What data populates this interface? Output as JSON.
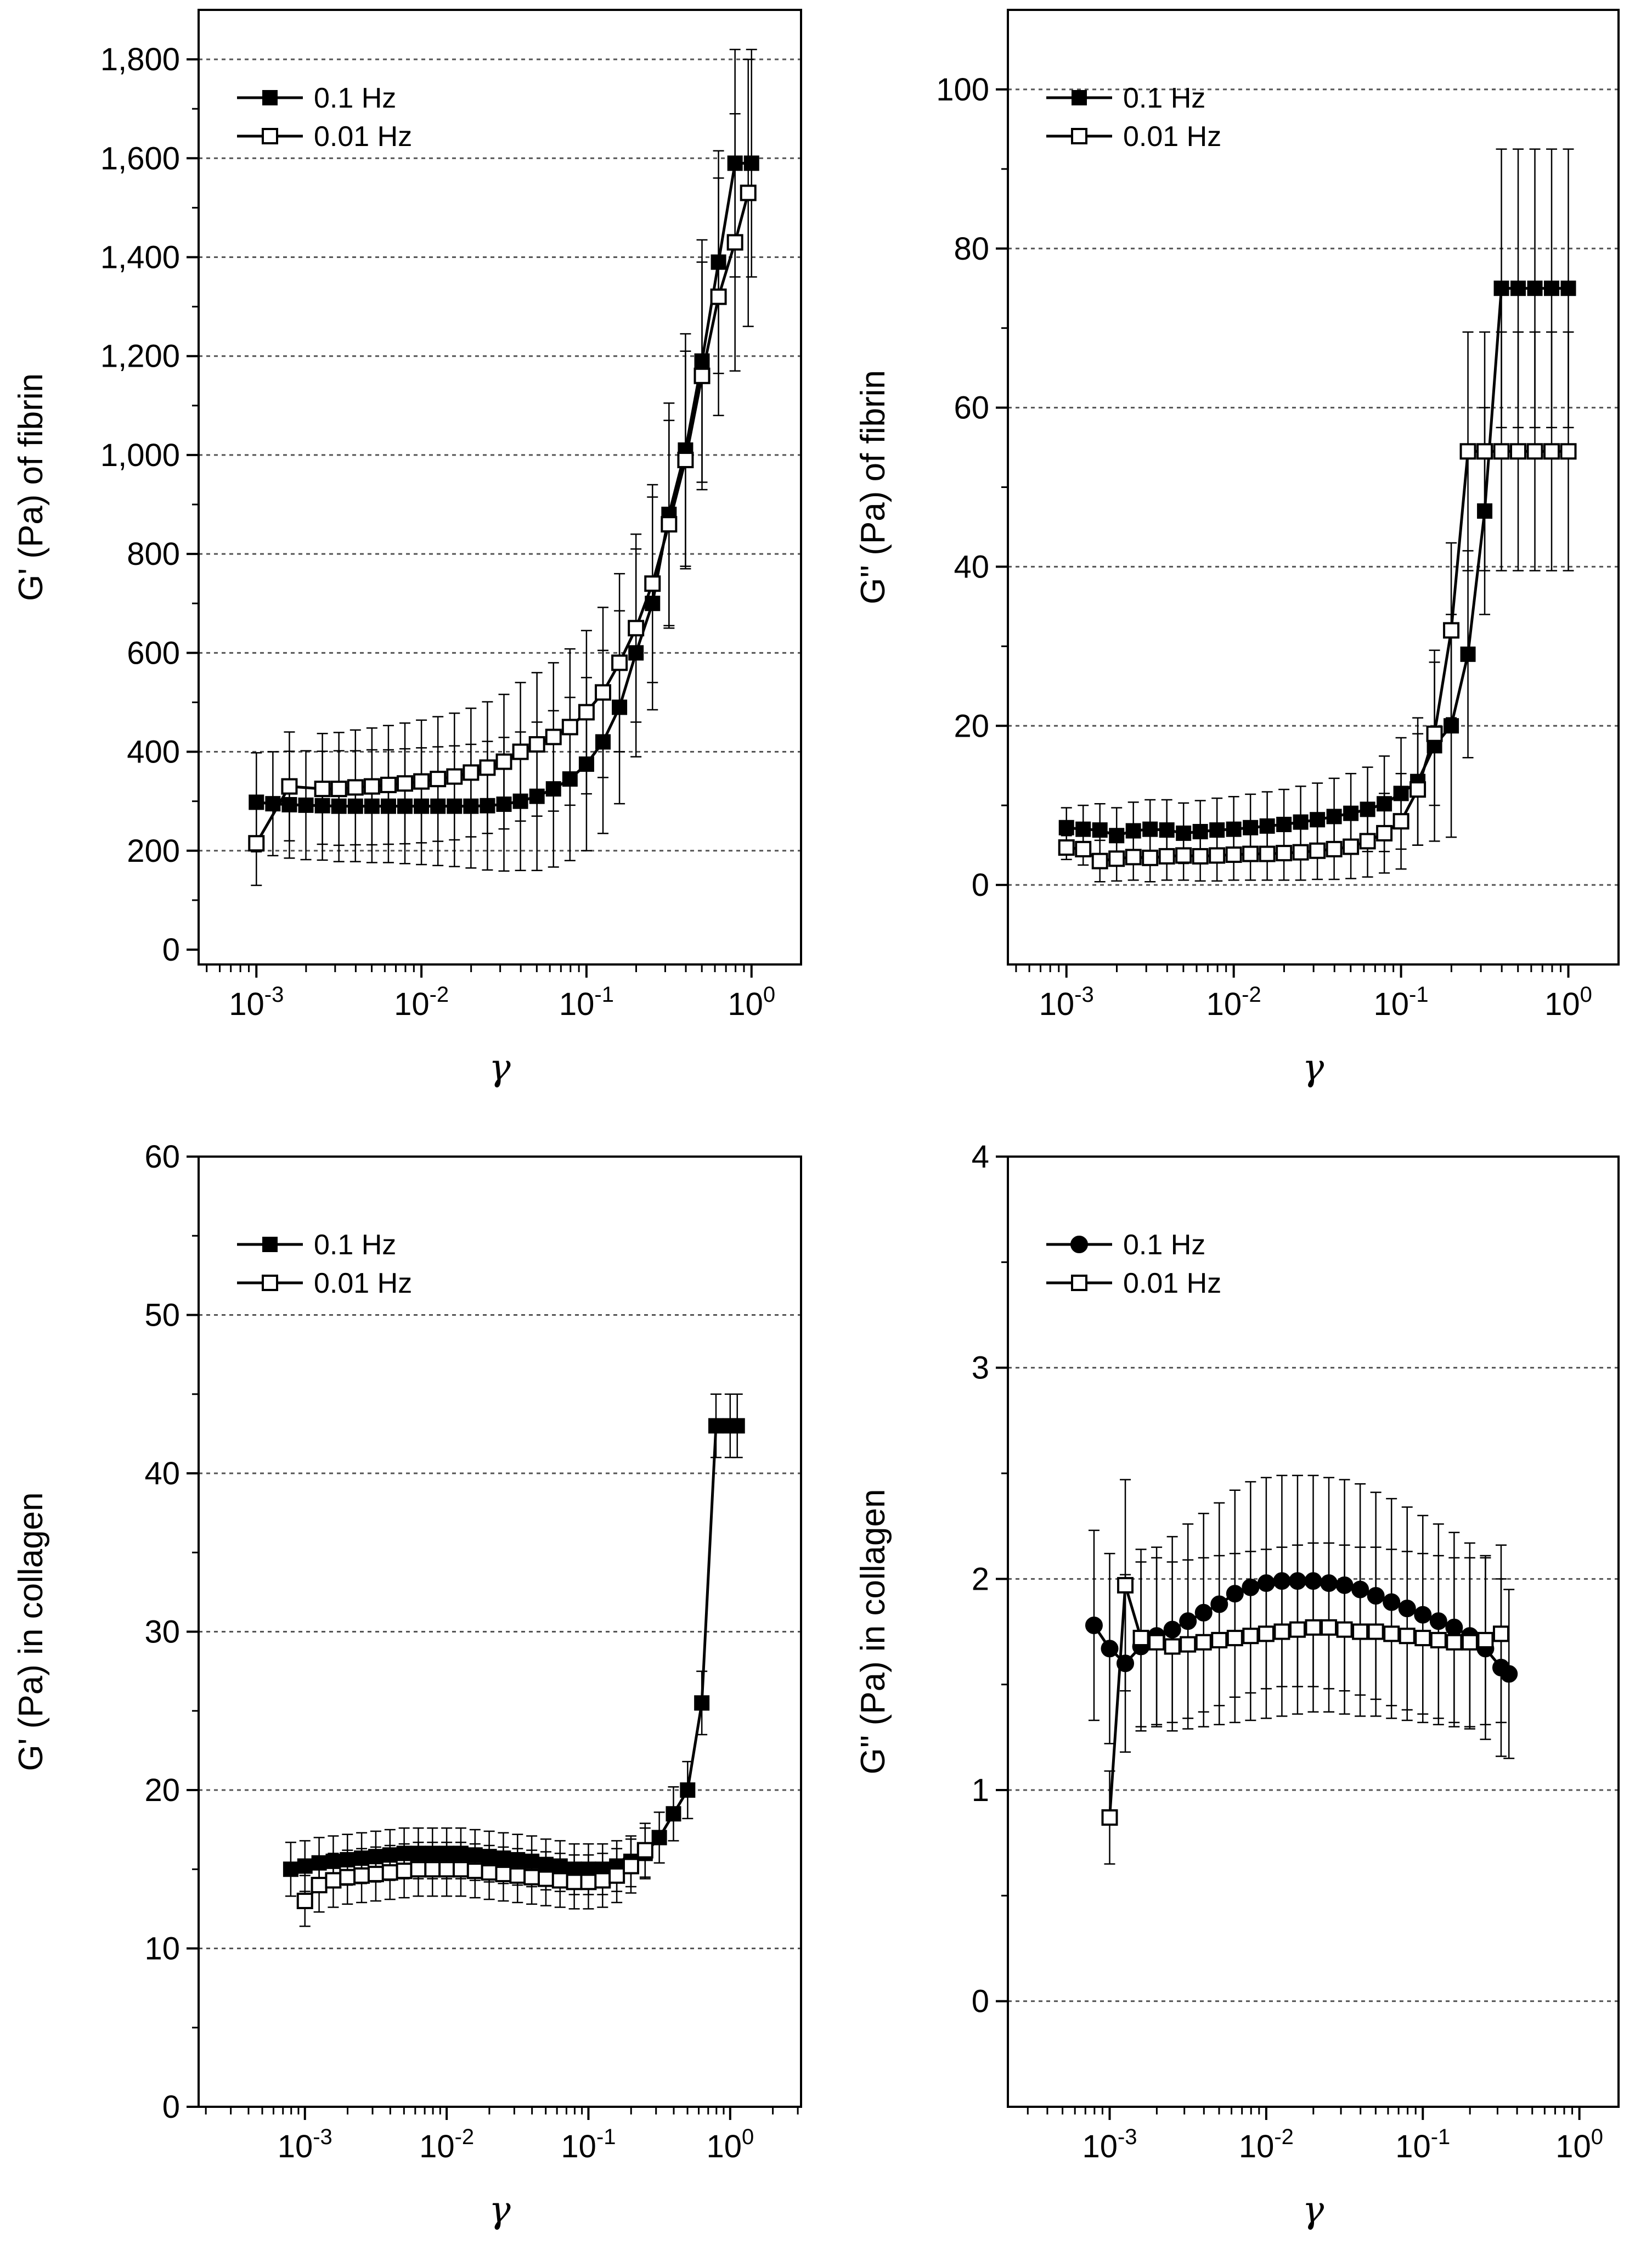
{
  "figure": {
    "panels": 4,
    "layout": "2x2 grid",
    "colors": {
      "line": "#000000",
      "background": "#ffffff",
      "grid": "#555555"
    }
  },
  "chart_data": [
    {
      "id": "fibrin-storage",
      "type": "line",
      "title": "",
      "xlabel": "γ",
      "ylabel": "G' (Pa) of fibrin",
      "xscale": "log",
      "xlim_exp": [
        -3.35,
        0.3
      ],
      "xticks": [
        {
          "exp": -3,
          "base": "10",
          "sup": "-3"
        },
        {
          "exp": -2,
          "base": "10",
          "sup": "-2"
        },
        {
          "exp": -1,
          "base": "10",
          "sup": "-1"
        },
        {
          "exp": 0,
          "base": "10",
          "sup": "0"
        }
      ],
      "ylim": [
        -30,
        1900
      ],
      "yticks": [
        {
          "v": 0,
          "label": "0"
        },
        {
          "v": 200,
          "label": "200"
        },
        {
          "v": 400,
          "label": "400"
        },
        {
          "v": 600,
          "label": "600"
        },
        {
          "v": 800,
          "label": "800"
        },
        {
          "v": 1000,
          "label": "1,000"
        },
        {
          "v": 1200,
          "label": "1,200"
        },
        {
          "v": 1400,
          "label": "1,400"
        },
        {
          "v": 1600,
          "label": "1,600"
        },
        {
          "v": 1800,
          "label": "1,800"
        }
      ],
      "gridlines": [
        200,
        400,
        600,
        800,
        1000,
        1200,
        1400,
        1600,
        1800
      ],
      "legend_position": "top-left",
      "series": [
        {
          "name": "0.1 Hz",
          "marker": "filled-square",
          "x_exp": [
            -3.0,
            -2.9,
            -2.8,
            -2.7,
            -2.6,
            -2.5,
            -2.4,
            -2.3,
            -2.2,
            -2.1,
            -2.0,
            -1.9,
            -1.8,
            -1.7,
            -1.6,
            -1.5,
            -1.4,
            -1.3,
            -1.2,
            -1.1,
            -1.0,
            -0.9,
            -0.8,
            -0.7,
            -0.6,
            -0.5,
            -0.4,
            -0.3,
            -0.2,
            -0.1,
            0.0
          ],
          "values": [
            298,
            295,
            293,
            292,
            291,
            290,
            290,
            290,
            290,
            290,
            290,
            290,
            290,
            290,
            291,
            294,
            300,
            310,
            325,
            345,
            375,
            420,
            490,
            600,
            700,
            880,
            1010,
            1190,
            1390,
            1590,
            1590
          ],
          "errors": [
            100,
            105,
            108,
            110,
            110,
            112,
            112,
            114,
            114,
            116,
            118,
            120,
            122,
            125,
            130,
            135,
            140,
            150,
            158,
            165,
            175,
            185,
            195,
            210,
            215,
            225,
            235,
            245,
            225,
            230,
            230
          ]
        },
        {
          "name": "0.01 Hz",
          "marker": "open-square",
          "x_exp": [
            -3.0,
            -2.8,
            -2.6,
            -2.5,
            -2.4,
            -2.3,
            -2.2,
            -2.1,
            -2.0,
            -1.9,
            -1.8,
            -1.7,
            -1.6,
            -1.5,
            -1.4,
            -1.3,
            -1.2,
            -1.1,
            -1.0,
            -0.9,
            -0.8,
            -0.7,
            -0.6,
            -0.5,
            -0.4,
            -0.3,
            -0.2,
            -0.1,
            -0.02
          ],
          "values": [
            215,
            330,
            325,
            325,
            328,
            330,
            333,
            336,
            340,
            345,
            350,
            358,
            368,
            380,
            400,
            415,
            430,
            450,
            480,
            520,
            580,
            650,
            740,
            860,
            990,
            1160,
            1320,
            1430,
            1530
          ],
          "errors": [
            85,
            110,
            112,
            114,
            116,
            118,
            120,
            122,
            124,
            126,
            128,
            130,
            133,
            136,
            140,
            145,
            150,
            158,
            165,
            172,
            180,
            190,
            200,
            210,
            220,
            230,
            240,
            260,
            270
          ]
        }
      ]
    },
    {
      "id": "fibrin-loss",
      "type": "line",
      "title": "",
      "xlabel": "γ",
      "ylabel": "G'' (Pa) of fibrin",
      "xscale": "log",
      "xlim_exp": [
        -3.35,
        0.3
      ],
      "xticks": [
        {
          "exp": -3,
          "base": "10",
          "sup": "-3"
        },
        {
          "exp": -2,
          "base": "10",
          "sup": "-2"
        },
        {
          "exp": -1,
          "base": "10",
          "sup": "-1"
        },
        {
          "exp": 0,
          "base": "10",
          "sup": "0"
        }
      ],
      "ylim": [
        -10,
        110
      ],
      "yticks": [
        {
          "v": 0,
          "label": "0"
        },
        {
          "v": 20,
          "label": "20"
        },
        {
          "v": 40,
          "label": "40"
        },
        {
          "v": 60,
          "label": "60"
        },
        {
          "v": 80,
          "label": "80"
        },
        {
          "v": 100,
          "label": "100"
        }
      ],
      "gridlines": [
        0,
        20,
        40,
        60,
        80,
        100
      ],
      "legend_position": "top-left",
      "series": [
        {
          "name": "0.1 Hz",
          "marker": "filled-square",
          "x_exp": [
            -3.0,
            -2.9,
            -2.8,
            -2.7,
            -2.6,
            -2.5,
            -2.4,
            -2.3,
            -2.2,
            -2.1,
            -2.0,
            -1.9,
            -1.8,
            -1.7,
            -1.6,
            -1.5,
            -1.4,
            -1.3,
            -1.2,
            -1.1,
            -1.0,
            -0.9,
            -0.8,
            -0.7,
            -0.6,
            -0.5,
            -0.4,
            -0.3,
            -0.2,
            -0.1,
            0.0
          ],
          "values": [
            7.2,
            7.0,
            6.9,
            6.2,
            6.8,
            7.0,
            6.9,
            6.5,
            6.7,
            6.9,
            7.0,
            7.2,
            7.4,
            7.6,
            7.9,
            8.2,
            8.6,
            9.0,
            9.5,
            10.2,
            11.5,
            13.0,
            17.5,
            20.0,
            29.0,
            47.0,
            75.0,
            75.0,
            75.0,
            75.0,
            75.0
          ],
          "errors": [
            2.5,
            3.0,
            3.3,
            3.5,
            3.6,
            3.7,
            3.8,
            3.8,
            3.9,
            4.0,
            4.1,
            4.2,
            4.3,
            4.4,
            4.5,
            4.6,
            4.8,
            5.0,
            5.3,
            6.0,
            7.0,
            8.0,
            12.0,
            14.0,
            13.0,
            13.0,
            17.5,
            17.5,
            17.5,
            17.5,
            17.5
          ]
        },
        {
          "name": "0.01 Hz",
          "marker": "open-square",
          "x_exp": [
            -3.0,
            -2.9,
            -2.8,
            -2.7,
            -2.6,
            -2.5,
            -2.4,
            -2.3,
            -2.2,
            -2.1,
            -2.0,
            -1.9,
            -1.8,
            -1.7,
            -1.6,
            -1.5,
            -1.4,
            -1.3,
            -1.2,
            -1.1,
            -1.0,
            -0.9,
            -0.8,
            -0.7,
            -0.6,
            -0.5,
            -0.4,
            -0.3,
            -0.2,
            -0.1,
            0.0
          ],
          "values": [
            4.7,
            4.5,
            3.0,
            3.3,
            3.5,
            3.4,
            3.6,
            3.7,
            3.6,
            3.7,
            3.8,
            3.9,
            3.9,
            4.0,
            4.1,
            4.3,
            4.5,
            4.8,
            5.5,
            6.5,
            8.0,
            12.0,
            19.0,
            32.0,
            54.5,
            54.5,
            54.5,
            54.5,
            54.5,
            54.5,
            54.5
          ],
          "errors": [
            1.5,
            2.0,
            2.6,
            2.8,
            2.9,
            3.0,
            3.0,
            3.1,
            3.1,
            3.2,
            3.2,
            3.3,
            3.3,
            3.4,
            3.5,
            3.6,
            3.8,
            4.0,
            4.5,
            5.0,
            6.0,
            7.0,
            9.0,
            11.0,
            15.0,
            15.0,
            15.0,
            15.0,
            15.0,
            15.0,
            15.0
          ]
        }
      ]
    },
    {
      "id": "collagen-storage",
      "type": "line",
      "title": "",
      "xlabel": "γ",
      "ylabel": "G' (Pa) in collagen",
      "xscale": "log",
      "xlim_exp": [
        -3.75,
        0.5
      ],
      "xticks": [
        {
          "exp": -3,
          "base": "10",
          "sup": "-3"
        },
        {
          "exp": -2,
          "base": "10",
          "sup": "-2"
        },
        {
          "exp": -1,
          "base": "10",
          "sup": "-1"
        },
        {
          "exp": 0,
          "base": "10",
          "sup": "0"
        }
      ],
      "ylim": [
        0,
        60
      ],
      "yticks": [
        {
          "v": 0,
          "label": "0"
        },
        {
          "v": 10,
          "label": "10"
        },
        {
          "v": 20,
          "label": "20"
        },
        {
          "v": 30,
          "label": "30"
        },
        {
          "v": 40,
          "label": "40"
        },
        {
          "v": 50,
          "label": "50"
        },
        {
          "v": 60,
          "label": "60"
        }
      ],
      "gridlines": [
        10,
        20,
        30,
        40,
        50
      ],
      "legend_position": "top-left",
      "series": [
        {
          "name": "0.1 Hz",
          "marker": "filled-square",
          "x_exp": [
            -3.1,
            -3.0,
            -2.9,
            -2.8,
            -2.7,
            -2.6,
            -2.5,
            -2.4,
            -2.3,
            -2.2,
            -2.1,
            -2.0,
            -1.9,
            -1.8,
            -1.7,
            -1.6,
            -1.5,
            -1.4,
            -1.3,
            -1.2,
            -1.1,
            -1.0,
            -0.9,
            -0.8,
            -0.7,
            -0.6,
            -0.5,
            -0.4,
            -0.3,
            -0.2,
            -0.1,
            0.0,
            0.05
          ],
          "values": [
            15.0,
            15.2,
            15.4,
            15.5,
            15.6,
            15.7,
            15.8,
            15.9,
            16.0,
            16.0,
            16.0,
            16.0,
            16.0,
            15.9,
            15.8,
            15.7,
            15.6,
            15.5,
            15.3,
            15.2,
            15.0,
            15.0,
            15.0,
            15.2,
            15.5,
            16.0,
            17.0,
            18.5,
            20.0,
            25.5,
            43.0,
            43.0,
            43.0
          ],
          "errors": [
            1.7,
            1.6,
            1.6,
            1.6,
            1.6,
            1.6,
            1.6,
            1.6,
            1.6,
            1.6,
            1.6,
            1.6,
            1.6,
            1.6,
            1.6,
            1.6,
            1.6,
            1.6,
            1.6,
            1.6,
            1.6,
            1.6,
            1.6,
            1.6,
            1.6,
            1.6,
            1.6,
            1.7,
            1.8,
            2.0,
            2.0,
            2.0,
            2.0
          ]
        },
        {
          "name": "0.01 Hz",
          "marker": "open-square",
          "x_exp": [
            -3.0,
            -2.9,
            -2.8,
            -2.7,
            -2.6,
            -2.5,
            -2.4,
            -2.3,
            -2.2,
            -2.1,
            -2.0,
            -1.9,
            -1.8,
            -1.7,
            -1.6,
            -1.5,
            -1.4,
            -1.3,
            -1.2,
            -1.1,
            -1.0,
            -0.9,
            -0.8,
            -0.7,
            -0.6
          ],
          "values": [
            13.0,
            14.0,
            14.3,
            14.5,
            14.6,
            14.7,
            14.8,
            14.9,
            15.0,
            15.0,
            15.0,
            15.0,
            14.9,
            14.8,
            14.7,
            14.6,
            14.5,
            14.4,
            14.3,
            14.2,
            14.2,
            14.3,
            14.6,
            15.2,
            16.2
          ],
          "errors": [
            1.6,
            1.7,
            1.7,
            1.7,
            1.7,
            1.7,
            1.7,
            1.7,
            1.7,
            1.7,
            1.7,
            1.7,
            1.7,
            1.7,
            1.7,
            1.7,
            1.7,
            1.7,
            1.7,
            1.7,
            1.7,
            1.7,
            1.7,
            1.7,
            1.7
          ]
        }
      ]
    },
    {
      "id": "collagen-loss",
      "type": "line",
      "title": "",
      "xlabel": "γ",
      "ylabel": "G'' (Pa) in collagen",
      "xscale": "log",
      "xlim_exp": [
        -3.65,
        0.25
      ],
      "xticks": [
        {
          "exp": -3,
          "base": "10",
          "sup": "-3"
        },
        {
          "exp": -2,
          "base": "10",
          "sup": "-2"
        },
        {
          "exp": -1,
          "base": "10",
          "sup": "-1"
        },
        {
          "exp": 0,
          "base": "10",
          "sup": "0"
        }
      ],
      "ylim": [
        -0.5,
        4
      ],
      "yticks": [
        {
          "v": 0,
          "label": "0"
        },
        {
          "v": 1,
          "label": "1"
        },
        {
          "v": 2,
          "label": "2"
        },
        {
          "v": 3,
          "label": "3"
        },
        {
          "v": 4,
          "label": "4"
        }
      ],
      "gridlines": [
        0,
        1,
        2,
        3
      ],
      "legend_position": "top-left",
      "series": [
        {
          "name": "0.1 Hz",
          "marker": "filled-circle",
          "x_exp": [
            -3.1,
            -3.0,
            -2.9,
            -2.8,
            -2.7,
            -2.6,
            -2.5,
            -2.4,
            -2.3,
            -2.2,
            -2.1,
            -2.0,
            -1.9,
            -1.8,
            -1.7,
            -1.6,
            -1.5,
            -1.4,
            -1.3,
            -1.2,
            -1.1,
            -1.0,
            -0.9,
            -0.8,
            -0.7,
            -0.6,
            -0.5,
            -0.45
          ],
          "values": [
            1.78,
            1.67,
            1.6,
            1.68,
            1.73,
            1.76,
            1.8,
            1.84,
            1.88,
            1.93,
            1.96,
            1.98,
            1.99,
            1.99,
            1.99,
            1.98,
            1.97,
            1.95,
            1.92,
            1.89,
            1.86,
            1.83,
            1.8,
            1.77,
            1.73,
            1.67,
            1.58,
            1.55
          ],
          "errors": [
            0.45,
            0.45,
            0.42,
            0.4,
            0.42,
            0.44,
            0.46,
            0.47,
            0.48,
            0.49,
            0.5,
            0.5,
            0.5,
            0.5,
            0.5,
            0.5,
            0.5,
            0.5,
            0.49,
            0.49,
            0.48,
            0.47,
            0.46,
            0.45,
            0.44,
            0.43,
            0.42,
            0.4
          ]
        },
        {
          "name": "0.01 Hz",
          "marker": "open-square",
          "x_exp": [
            -3.0,
            -2.9,
            -2.8,
            -2.7,
            -2.6,
            -2.5,
            -2.4,
            -2.3,
            -2.2,
            -2.1,
            -2.0,
            -1.9,
            -1.8,
            -1.7,
            -1.6,
            -1.5,
            -1.4,
            -1.3,
            -1.2,
            -1.1,
            -1.0,
            -0.9,
            -0.8,
            -0.7,
            -0.6,
            -0.5
          ],
          "values": [
            0.87,
            1.97,
            1.72,
            1.7,
            1.68,
            1.69,
            1.7,
            1.71,
            1.72,
            1.73,
            1.74,
            1.75,
            1.76,
            1.77,
            1.77,
            1.76,
            1.75,
            1.75,
            1.74,
            1.73,
            1.72,
            1.71,
            1.7,
            1.7,
            1.71,
            1.74
          ],
          "errors": [
            0.22,
            0.5,
            0.42,
            0.4,
            0.4,
            0.4,
            0.4,
            0.4,
            0.4,
            0.4,
            0.4,
            0.4,
            0.4,
            0.4,
            0.4,
            0.4,
            0.4,
            0.4,
            0.4,
            0.4,
            0.4,
            0.4,
            0.4,
            0.4,
            0.4,
            0.42
          ]
        }
      ]
    }
  ]
}
